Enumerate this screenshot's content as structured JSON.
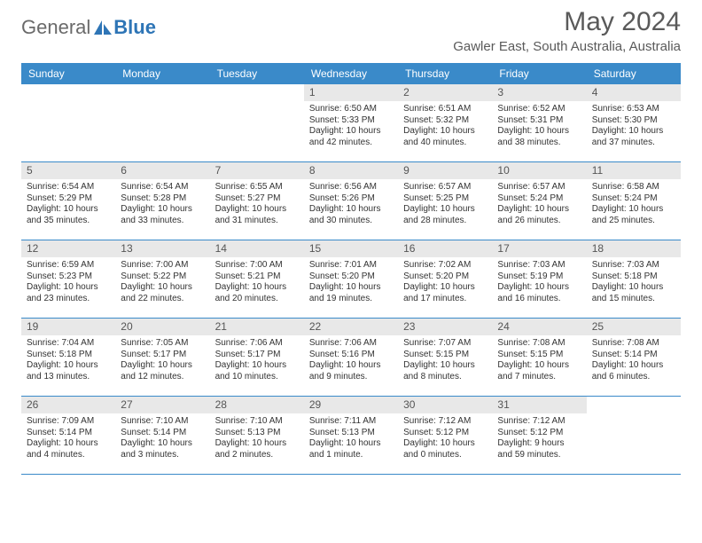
{
  "brand": {
    "text1": "General",
    "text2": "Blue"
  },
  "title": "May 2024",
  "location": "Gawler East, South Australia, Australia",
  "colors": {
    "header_bg": "#3a8ac9",
    "header_text": "#ffffff",
    "daynum_bg": "#e8e8e8",
    "text": "#333333",
    "rule": "#3a8ac9"
  },
  "day_headers": [
    "Sunday",
    "Monday",
    "Tuesday",
    "Wednesday",
    "Thursday",
    "Friday",
    "Saturday"
  ],
  "weeks": [
    [
      {
        "n": "",
        "sr": "",
        "ss": "",
        "dl": ""
      },
      {
        "n": "",
        "sr": "",
        "ss": "",
        "dl": ""
      },
      {
        "n": "",
        "sr": "",
        "ss": "",
        "dl": ""
      },
      {
        "n": "1",
        "sr": "Sunrise: 6:50 AM",
        "ss": "Sunset: 5:33 PM",
        "dl": "Daylight: 10 hours and 42 minutes."
      },
      {
        "n": "2",
        "sr": "Sunrise: 6:51 AM",
        "ss": "Sunset: 5:32 PM",
        "dl": "Daylight: 10 hours and 40 minutes."
      },
      {
        "n": "3",
        "sr": "Sunrise: 6:52 AM",
        "ss": "Sunset: 5:31 PM",
        "dl": "Daylight: 10 hours and 38 minutes."
      },
      {
        "n": "4",
        "sr": "Sunrise: 6:53 AM",
        "ss": "Sunset: 5:30 PM",
        "dl": "Daylight: 10 hours and 37 minutes."
      }
    ],
    [
      {
        "n": "5",
        "sr": "Sunrise: 6:54 AM",
        "ss": "Sunset: 5:29 PM",
        "dl": "Daylight: 10 hours and 35 minutes."
      },
      {
        "n": "6",
        "sr": "Sunrise: 6:54 AM",
        "ss": "Sunset: 5:28 PM",
        "dl": "Daylight: 10 hours and 33 minutes."
      },
      {
        "n": "7",
        "sr": "Sunrise: 6:55 AM",
        "ss": "Sunset: 5:27 PM",
        "dl": "Daylight: 10 hours and 31 minutes."
      },
      {
        "n": "8",
        "sr": "Sunrise: 6:56 AM",
        "ss": "Sunset: 5:26 PM",
        "dl": "Daylight: 10 hours and 30 minutes."
      },
      {
        "n": "9",
        "sr": "Sunrise: 6:57 AM",
        "ss": "Sunset: 5:25 PM",
        "dl": "Daylight: 10 hours and 28 minutes."
      },
      {
        "n": "10",
        "sr": "Sunrise: 6:57 AM",
        "ss": "Sunset: 5:24 PM",
        "dl": "Daylight: 10 hours and 26 minutes."
      },
      {
        "n": "11",
        "sr": "Sunrise: 6:58 AM",
        "ss": "Sunset: 5:24 PM",
        "dl": "Daylight: 10 hours and 25 minutes."
      }
    ],
    [
      {
        "n": "12",
        "sr": "Sunrise: 6:59 AM",
        "ss": "Sunset: 5:23 PM",
        "dl": "Daylight: 10 hours and 23 minutes."
      },
      {
        "n": "13",
        "sr": "Sunrise: 7:00 AM",
        "ss": "Sunset: 5:22 PM",
        "dl": "Daylight: 10 hours and 22 minutes."
      },
      {
        "n": "14",
        "sr": "Sunrise: 7:00 AM",
        "ss": "Sunset: 5:21 PM",
        "dl": "Daylight: 10 hours and 20 minutes."
      },
      {
        "n": "15",
        "sr": "Sunrise: 7:01 AM",
        "ss": "Sunset: 5:20 PM",
        "dl": "Daylight: 10 hours and 19 minutes."
      },
      {
        "n": "16",
        "sr": "Sunrise: 7:02 AM",
        "ss": "Sunset: 5:20 PM",
        "dl": "Daylight: 10 hours and 17 minutes."
      },
      {
        "n": "17",
        "sr": "Sunrise: 7:03 AM",
        "ss": "Sunset: 5:19 PM",
        "dl": "Daylight: 10 hours and 16 minutes."
      },
      {
        "n": "18",
        "sr": "Sunrise: 7:03 AM",
        "ss": "Sunset: 5:18 PM",
        "dl": "Daylight: 10 hours and 15 minutes."
      }
    ],
    [
      {
        "n": "19",
        "sr": "Sunrise: 7:04 AM",
        "ss": "Sunset: 5:18 PM",
        "dl": "Daylight: 10 hours and 13 minutes."
      },
      {
        "n": "20",
        "sr": "Sunrise: 7:05 AM",
        "ss": "Sunset: 5:17 PM",
        "dl": "Daylight: 10 hours and 12 minutes."
      },
      {
        "n": "21",
        "sr": "Sunrise: 7:06 AM",
        "ss": "Sunset: 5:17 PM",
        "dl": "Daylight: 10 hours and 10 minutes."
      },
      {
        "n": "22",
        "sr": "Sunrise: 7:06 AM",
        "ss": "Sunset: 5:16 PM",
        "dl": "Daylight: 10 hours and 9 minutes."
      },
      {
        "n": "23",
        "sr": "Sunrise: 7:07 AM",
        "ss": "Sunset: 5:15 PM",
        "dl": "Daylight: 10 hours and 8 minutes."
      },
      {
        "n": "24",
        "sr": "Sunrise: 7:08 AM",
        "ss": "Sunset: 5:15 PM",
        "dl": "Daylight: 10 hours and 7 minutes."
      },
      {
        "n": "25",
        "sr": "Sunrise: 7:08 AM",
        "ss": "Sunset: 5:14 PM",
        "dl": "Daylight: 10 hours and 6 minutes."
      }
    ],
    [
      {
        "n": "26",
        "sr": "Sunrise: 7:09 AM",
        "ss": "Sunset: 5:14 PM",
        "dl": "Daylight: 10 hours and 4 minutes."
      },
      {
        "n": "27",
        "sr": "Sunrise: 7:10 AM",
        "ss": "Sunset: 5:14 PM",
        "dl": "Daylight: 10 hours and 3 minutes."
      },
      {
        "n": "28",
        "sr": "Sunrise: 7:10 AM",
        "ss": "Sunset: 5:13 PM",
        "dl": "Daylight: 10 hours and 2 minutes."
      },
      {
        "n": "29",
        "sr": "Sunrise: 7:11 AM",
        "ss": "Sunset: 5:13 PM",
        "dl": "Daylight: 10 hours and 1 minute."
      },
      {
        "n": "30",
        "sr": "Sunrise: 7:12 AM",
        "ss": "Sunset: 5:12 PM",
        "dl": "Daylight: 10 hours and 0 minutes."
      },
      {
        "n": "31",
        "sr": "Sunrise: 7:12 AM",
        "ss": "Sunset: 5:12 PM",
        "dl": "Daylight: 9 hours and 59 minutes."
      },
      {
        "n": "",
        "sr": "",
        "ss": "",
        "dl": ""
      }
    ]
  ]
}
